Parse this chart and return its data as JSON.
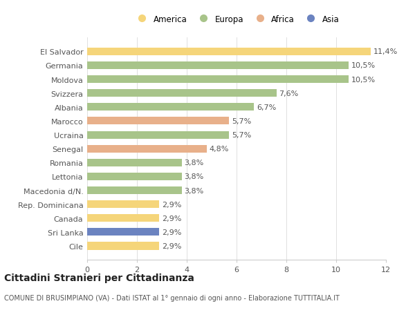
{
  "categories": [
    "Cile",
    "Sri Lanka",
    "Canada",
    "Rep. Dominicana",
    "Macedonia d/N.",
    "Lettonia",
    "Romania",
    "Senegal",
    "Ucraina",
    "Marocco",
    "Albania",
    "Svizzera",
    "Moldova",
    "Germania",
    "El Salvador"
  ],
  "values": [
    2.9,
    2.9,
    2.9,
    2.9,
    3.8,
    3.8,
    3.8,
    4.8,
    5.7,
    5.7,
    6.7,
    7.6,
    10.5,
    10.5,
    11.4
  ],
  "colors": [
    "#f5d57a",
    "#6b83c0",
    "#f5d57a",
    "#f5d57a",
    "#a8c48a",
    "#a8c48a",
    "#a8c48a",
    "#e8b08a",
    "#a8c48a",
    "#e8b08a",
    "#a8c48a",
    "#a8c48a",
    "#a8c48a",
    "#a8c48a",
    "#f5d57a"
  ],
  "labels": [
    "2,9%",
    "2,9%",
    "2,9%",
    "2,9%",
    "3,8%",
    "3,8%",
    "3,8%",
    "4,8%",
    "5,7%",
    "5,7%",
    "6,7%",
    "7,6%",
    "10,5%",
    "10,5%",
    "11,4%"
  ],
  "legend_labels": [
    "America",
    "Europa",
    "Africa",
    "Asia"
  ],
  "legend_colors": [
    "#f5d57a",
    "#a8c48a",
    "#e8b08a",
    "#6b83c0"
  ],
  "title": "Cittadini Stranieri per Cittadinanza",
  "subtitle": "COMUNE DI BRUSIMPIANO (VA) - Dati ISTAT al 1° gennaio di ogni anno - Elaborazione TUTTITALIA.IT",
  "xlim": [
    0,
    12
  ],
  "xticks": [
    0,
    2,
    4,
    6,
    8,
    10,
    12
  ],
  "background_color": "#ffffff",
  "bar_height": 0.55,
  "grid_color": "#e0e0e0",
  "label_fontsize": 8,
  "tick_fontsize": 8,
  "title_fontsize": 10,
  "subtitle_fontsize": 7
}
